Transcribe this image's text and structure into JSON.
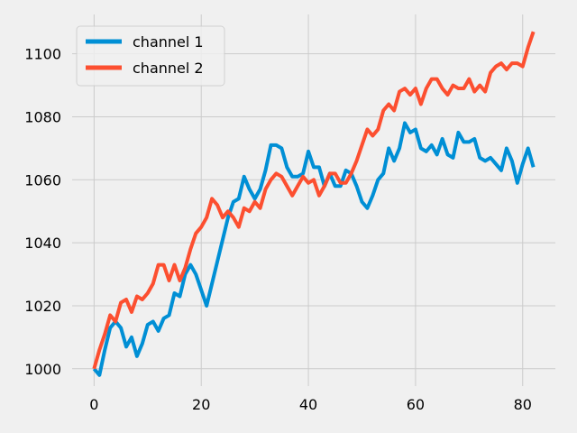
{
  "chart_data": {
    "type": "line",
    "title": "",
    "xlabel": "",
    "ylabel": "",
    "xlim": [
      -4.1,
      86.1
    ],
    "ylim": [
      994.5,
      1112.5
    ],
    "xticks": [
      0,
      20,
      40,
      60,
      80
    ],
    "yticks": [
      1000,
      1020,
      1040,
      1060,
      1080,
      1100
    ],
    "grid": true,
    "legend_position": "top-left",
    "x": [
      0,
      1,
      2,
      3,
      4,
      5,
      6,
      7,
      8,
      9,
      10,
      11,
      12,
      13,
      14,
      15,
      16,
      17,
      18,
      19,
      20,
      21,
      22,
      23,
      24,
      25,
      26,
      27,
      28,
      29,
      30,
      31,
      32,
      33,
      34,
      35,
      36,
      37,
      38,
      39,
      40,
      41,
      42,
      43,
      44,
      45,
      46,
      47,
      48,
      49,
      50,
      51,
      52,
      53,
      54,
      55,
      56,
      57,
      58,
      59,
      60,
      61,
      62,
      63,
      64,
      65,
      66,
      67,
      68,
      69,
      70,
      71,
      72,
      73,
      74,
      75,
      76,
      77,
      78,
      79,
      80,
      81,
      82
    ],
    "series": [
      {
        "name": "channel 1",
        "color": "#008fd5",
        "values": [
          1000,
          998,
          1006,
          1013,
          1015,
          1013,
          1007,
          1010,
          1004,
          1008,
          1014,
          1015,
          1012,
          1016,
          1017,
          1024,
          1023,
          1030,
          1033,
          1030,
          1025,
          1020,
          1027,
          1034,
          1041,
          1048,
          1053,
          1054,
          1061,
          1057,
          1054,
          1057,
          1063,
          1071,
          1071,
          1070,
          1064,
          1061,
          1061,
          1062,
          1069,
          1064,
          1064,
          1058,
          1062,
          1058,
          1058,
          1063,
          1062,
          1058,
          1053,
          1051,
          1055,
          1060,
          1062,
          1070,
          1066,
          1070,
          1078,
          1075,
          1076,
          1070,
          1069,
          1071,
          1068,
          1073,
          1068,
          1067,
          1075,
          1072,
          1072,
          1073,
          1067,
          1066,
          1067,
          1065,
          1063,
          1070,
          1066,
          1059,
          1065,
          1070,
          1064
        ]
      },
      {
        "name": "channel 2",
        "color": "#fc4f30",
        "values": [
          1000,
          1006,
          1011,
          1017,
          1015,
          1021,
          1022,
          1018,
          1023,
          1022,
          1024,
          1027,
          1033,
          1033,
          1028,
          1033,
          1028,
          1032,
          1038,
          1043,
          1045,
          1048,
          1054,
          1052,
          1048,
          1050,
          1048,
          1045,
          1051,
          1050,
          1053,
          1051,
          1057,
          1060,
          1062,
          1061,
          1058,
          1055,
          1058,
          1061,
          1059,
          1060,
          1055,
          1058,
          1062,
          1062,
          1059,
          1059,
          1062,
          1066,
          1071,
          1076,
          1074,
          1076,
          1082,
          1084,
          1082,
          1088,
          1089,
          1087,
          1089,
          1084,
          1089,
          1092,
          1092,
          1089,
          1087,
          1090,
          1089,
          1089,
          1092,
          1088,
          1090,
          1088,
          1094,
          1096,
          1097,
          1095,
          1097,
          1097,
          1096,
          1102,
          1107
        ]
      }
    ]
  },
  "colors": {
    "background": "#f0f0f0",
    "grid": "#cbcbcb"
  }
}
